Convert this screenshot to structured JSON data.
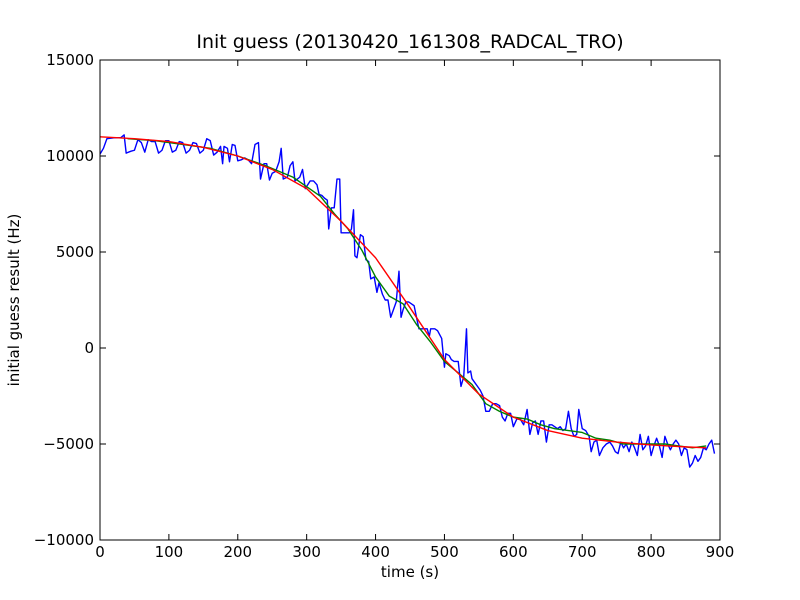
{
  "chart_data": {
    "type": "line",
    "title": "Init guess (20130420_161308_RADCAL_TRO)",
    "xlabel": "time (s)",
    "ylabel": "initial guess result (Hz)",
    "xlim": [
      0,
      900
    ],
    "ylim": [
      -10000,
      15000
    ],
    "x_ticks": [
      0,
      100,
      200,
      300,
      400,
      500,
      600,
      700,
      800,
      900
    ],
    "y_ticks": [
      -10000,
      -5000,
      0,
      5000,
      10000,
      15000
    ],
    "x_tick_labels": [
      "0",
      "100",
      "200",
      "300",
      "400",
      "500",
      "600",
      "700",
      "800",
      "900"
    ],
    "y_tick_labels": [
      "−10000",
      "−5000",
      "0",
      "5000",
      "10000",
      "15000"
    ],
    "grid": false,
    "legend": "none",
    "colors": {
      "raw": "#0000ff",
      "smoothed": "#008000",
      "fit": "#ff0000",
      "axes": "#000000"
    },
    "series": [
      {
        "color": "#0000ff",
        "points": [
          [
            0,
            10100
          ],
          [
            5,
            10400
          ],
          [
            10,
            10900
          ],
          [
            20,
            10950
          ],
          [
            30,
            10950
          ],
          [
            35,
            11100
          ],
          [
            38,
            10150
          ],
          [
            45,
            10250
          ],
          [
            50,
            10300
          ],
          [
            55,
            10850
          ],
          [
            60,
            10700
          ],
          [
            65,
            10200
          ],
          [
            70,
            10850
          ],
          [
            75,
            10750
          ],
          [
            80,
            10750
          ],
          [
            85,
            10150
          ],
          [
            90,
            10300
          ],
          [
            95,
            10800
          ],
          [
            100,
            10800
          ],
          [
            105,
            10200
          ],
          [
            110,
            10300
          ],
          [
            115,
            10750
          ],
          [
            120,
            10700
          ],
          [
            125,
            10150
          ],
          [
            130,
            10300
          ],
          [
            135,
            10700
          ],
          [
            140,
            10650
          ],
          [
            145,
            10150
          ],
          [
            150,
            10300
          ],
          [
            155,
            10900
          ],
          [
            160,
            10800
          ],
          [
            165,
            10050
          ],
          [
            170,
            10200
          ],
          [
            175,
            10500
          ],
          [
            178,
            9600
          ],
          [
            180,
            10500
          ],
          [
            185,
            10400
          ],
          [
            188,
            9700
          ],
          [
            192,
            10600
          ],
          [
            196,
            10550
          ],
          [
            200,
            9750
          ],
          [
            205,
            9800
          ],
          [
            210,
            9900
          ],
          [
            215,
            9800
          ],
          [
            220,
            9600
          ],
          [
            225,
            10600
          ],
          [
            230,
            10700
          ],
          [
            233,
            8800
          ],
          [
            238,
            9600
          ],
          [
            242,
            9600
          ],
          [
            246,
            8750
          ],
          [
            250,
            9100
          ],
          [
            255,
            9200
          ],
          [
            260,
            9700
          ],
          [
            263,
            10400
          ],
          [
            266,
            8800
          ],
          [
            272,
            8900
          ],
          [
            276,
            9500
          ],
          [
            280,
            9700
          ],
          [
            283,
            8700
          ],
          [
            290,
            8900
          ],
          [
            294,
            9300
          ],
          [
            298,
            8300
          ],
          [
            305,
            8700
          ],
          [
            310,
            8700
          ],
          [
            315,
            8500
          ],
          [
            318,
            8000
          ],
          [
            322,
            7950
          ],
          [
            326,
            7800
          ],
          [
            330,
            7700
          ],
          [
            332,
            6200
          ],
          [
            336,
            7300
          ],
          [
            340,
            7300
          ],
          [
            344,
            8800
          ],
          [
            348,
            8800
          ],
          [
            350,
            6000
          ],
          [
            360,
            6000
          ],
          [
            362,
            6000
          ],
          [
            365,
            6200
          ],
          [
            368,
            7200
          ],
          [
            370,
            4800
          ],
          [
            373,
            4700
          ],
          [
            378,
            5900
          ],
          [
            382,
            5800
          ],
          [
            386,
            4600
          ],
          [
            390,
            4500
          ],
          [
            393,
            3600
          ],
          [
            398,
            3700
          ],
          [
            402,
            2900
          ],
          [
            405,
            3400
          ],
          [
            410,
            2800
          ],
          [
            414,
            2500
          ],
          [
            418,
            2500
          ],
          [
            422,
            1600
          ],
          [
            426,
            2000
          ],
          [
            430,
            2400
          ],
          [
            434,
            4000
          ],
          [
            437,
            1600
          ],
          [
            440,
            2000
          ],
          [
            444,
            2400
          ],
          [
            448,
            2400
          ],
          [
            452,
            2300
          ],
          [
            456,
            2200
          ],
          [
            460,
            1500
          ],
          [
            463,
            1000
          ],
          [
            466,
            1000
          ],
          [
            470,
            1000
          ],
          [
            475,
            1000
          ],
          [
            478,
            600
          ],
          [
            480,
            1000
          ],
          [
            483,
            1000
          ],
          [
            486,
            1000
          ],
          [
            490,
            900
          ],
          [
            493,
            700
          ],
          [
            496,
            500
          ],
          [
            500,
            -1000
          ],
          [
            502,
            -300
          ],
          [
            507,
            -400
          ],
          [
            510,
            -600
          ],
          [
            514,
            -700
          ],
          [
            516,
            -700
          ],
          [
            520,
            -700
          ],
          [
            524,
            -2000
          ],
          [
            528,
            -1500
          ],
          [
            532,
            1000
          ],
          [
            534,
            -1300
          ],
          [
            538,
            -1200
          ],
          [
            540,
            -1600
          ],
          [
            544,
            -1800
          ],
          [
            548,
            -2000
          ],
          [
            552,
            -2200
          ],
          [
            556,
            -2500
          ],
          [
            560,
            -3300
          ],
          [
            565,
            -3300
          ],
          [
            570,
            -2900
          ],
          [
            575,
            -2900
          ],
          [
            580,
            -3000
          ],
          [
            584,
            -3600
          ],
          [
            588,
            -3800
          ],
          [
            592,
            -3400
          ],
          [
            596,
            -3400
          ],
          [
            600,
            -4100
          ],
          [
            605,
            -3700
          ],
          [
            610,
            -3700
          ],
          [
            615,
            -4000
          ],
          [
            620,
            -3200
          ],
          [
            624,
            -4500
          ],
          [
            628,
            -3900
          ],
          [
            632,
            -3800
          ],
          [
            636,
            -4500
          ],
          [
            640,
            -3800
          ],
          [
            644,
            -3800
          ],
          [
            648,
            -4900
          ],
          [
            652,
            -4000
          ],
          [
            656,
            -4000
          ],
          [
            660,
            -4100
          ],
          [
            664,
            -4200
          ],
          [
            668,
            -4100
          ],
          [
            672,
            -4300
          ],
          [
            676,
            -4200
          ],
          [
            680,
            -3300
          ],
          [
            684,
            -4200
          ],
          [
            688,
            -4600
          ],
          [
            692,
            -4500
          ],
          [
            695,
            -3200
          ],
          [
            700,
            -4200
          ],
          [
            705,
            -4300
          ],
          [
            710,
            -4600
          ],
          [
            713,
            -5400
          ],
          [
            717,
            -4900
          ],
          [
            721,
            -4800
          ],
          [
            725,
            -5600
          ],
          [
            730,
            -5200
          ],
          [
            735,
            -5000
          ],
          [
            740,
            -4900
          ],
          [
            744,
            -5100
          ],
          [
            748,
            -5400
          ],
          [
            752,
            -5500
          ],
          [
            756,
            -4900
          ],
          [
            760,
            -5200
          ],
          [
            764,
            -5000
          ],
          [
            768,
            -5400
          ],
          [
            772,
            -4900
          ],
          [
            776,
            -5200
          ],
          [
            780,
            -5600
          ],
          [
            784,
            -4500
          ],
          [
            788,
            -5300
          ],
          [
            792,
            -5100
          ],
          [
            796,
            -4600
          ],
          [
            800,
            -5600
          ],
          [
            804,
            -5100
          ],
          [
            808,
            -4700
          ],
          [
            812,
            -5100
          ],
          [
            816,
            -5700
          ],
          [
            820,
            -4600
          ],
          [
            824,
            -5000
          ],
          [
            828,
            -5300
          ],
          [
            832,
            -5000
          ],
          [
            836,
            -4800
          ],
          [
            840,
            -5000
          ],
          [
            844,
            -5600
          ],
          [
            848,
            -5200
          ],
          [
            852,
            -5300
          ],
          [
            856,
            -6200
          ],
          [
            860,
            -6000
          ],
          [
            864,
            -5600
          ],
          [
            868,
            -5900
          ],
          [
            872,
            -5700
          ],
          [
            876,
            -5200
          ],
          [
            880,
            -5300
          ],
          [
            884,
            -5000
          ],
          [
            888,
            -4800
          ],
          [
            892,
            -5500
          ]
        ]
      },
      {
        "color": "#008000",
        "points": [
          [
            40,
            10900
          ],
          [
            80,
            10800
          ],
          [
            120,
            10600
          ],
          [
            160,
            10400
          ],
          [
            200,
            10000
          ],
          [
            240,
            9500
          ],
          [
            280,
            8900
          ],
          [
            300,
            8400
          ],
          [
            320,
            7900
          ],
          [
            340,
            7000
          ],
          [
            360,
            6200
          ],
          [
            380,
            5100
          ],
          [
            400,
            3700
          ],
          [
            420,
            2700
          ],
          [
            440,
            2300
          ],
          [
            460,
            1200
          ],
          [
            480,
            300
          ],
          [
            500,
            -700
          ],
          [
            520,
            -1300
          ],
          [
            540,
            -1900
          ],
          [
            560,
            -2900
          ],
          [
            580,
            -3300
          ],
          [
            600,
            -3600
          ],
          [
            620,
            -3700
          ],
          [
            640,
            -4000
          ],
          [
            660,
            -4200
          ],
          [
            680,
            -4300
          ],
          [
            700,
            -4400
          ],
          [
            720,
            -4700
          ],
          [
            740,
            -4800
          ],
          [
            760,
            -5000
          ],
          [
            780,
            -5000
          ],
          [
            800,
            -5000
          ],
          [
            820,
            -5000
          ],
          [
            840,
            -5100
          ],
          [
            860,
            -5200
          ],
          [
            880,
            -5100
          ]
        ]
      },
      {
        "color": "#ff0000",
        "points": [
          [
            0,
            11000
          ],
          [
            50,
            10900
          ],
          [
            100,
            10750
          ],
          [
            150,
            10450
          ],
          [
            200,
            10000
          ],
          [
            250,
            9300
          ],
          [
            300,
            8300
          ],
          [
            350,
            6600
          ],
          [
            400,
            4700
          ],
          [
            450,
            2100
          ],
          [
            500,
            -600
          ],
          [
            550,
            -2400
          ],
          [
            600,
            -3600
          ],
          [
            650,
            -4300
          ],
          [
            700,
            -4700
          ],
          [
            750,
            -4900
          ],
          [
            800,
            -5050
          ],
          [
            850,
            -5150
          ],
          [
            880,
            -5200
          ]
        ]
      }
    ]
  }
}
